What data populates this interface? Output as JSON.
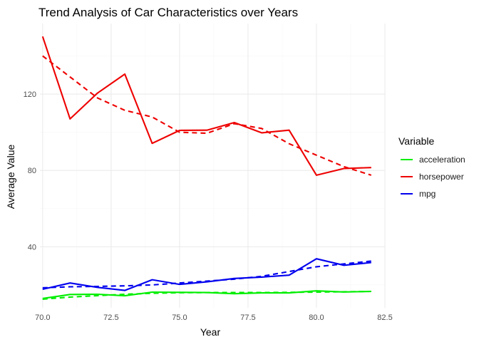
{
  "chart_data": {
    "type": "line",
    "title": "Trend Analysis of Car Characteristics over Years",
    "xlabel": "Year",
    "ylabel": "Average Value",
    "xlim": [
      69.9,
      82.5
    ],
    "ylim": [
      8,
      157
    ],
    "x_ticks": [
      70.0,
      72.5,
      75.0,
      77.5,
      80.0,
      82.5
    ],
    "x_tick_labels": [
      "70.0",
      "72.5",
      "75.0",
      "77.5",
      "80.0",
      "82.5"
    ],
    "y_ticks": [
      40,
      80,
      120
    ],
    "y_tick_labels": [
      "40",
      "80",
      "120"
    ],
    "grid": true,
    "legend": {
      "title": "Variable",
      "placement": "right",
      "entries": [
        "acceleration",
        "horsepower",
        "mpg"
      ]
    },
    "x": [
      70,
      71,
      72,
      73,
      74,
      75,
      76,
      77,
      78,
      79,
      80,
      81,
      82
    ],
    "series": [
      {
        "name": "acceleration",
        "color": "#00ee00",
        "values": [
          12.9,
          15.0,
          15.1,
          14.3,
          16.2,
          16.1,
          16.0,
          15.4,
          15.8,
          15.8,
          16.9,
          16.3,
          16.6
        ],
        "trend": [
          12.5,
          13.6,
          14.4,
          15.1,
          15.6,
          15.9,
          16.0,
          16.0,
          16.0,
          16.1,
          16.2,
          16.4,
          16.6
        ]
      },
      {
        "name": "horsepower",
        "color": "#ee0000",
        "values": [
          150.2,
          107.0,
          120.5,
          130.5,
          94.2,
          101.0,
          101.1,
          105.1,
          99.7,
          101.1,
          77.5,
          81.0,
          81.5
        ],
        "trend": [
          140.0,
          129.0,
          118.0,
          111.5,
          108.0,
          100.0,
          99.5,
          104.5,
          102.0,
          94.0,
          88.0,
          82.0,
          77.5
        ]
      },
      {
        "name": "mpg",
        "color": "#0000ee",
        "values": [
          17.7,
          21.0,
          18.7,
          17.1,
          22.7,
          20.3,
          21.6,
          23.4,
          24.1,
          25.1,
          33.7,
          30.3,
          31.7
        ],
        "trend": [
          18.5,
          19.0,
          19.2,
          19.5,
          20.0,
          21.0,
          22.0,
          23.0,
          24.5,
          27.0,
          29.5,
          31.0,
          32.5
        ]
      }
    ]
  }
}
